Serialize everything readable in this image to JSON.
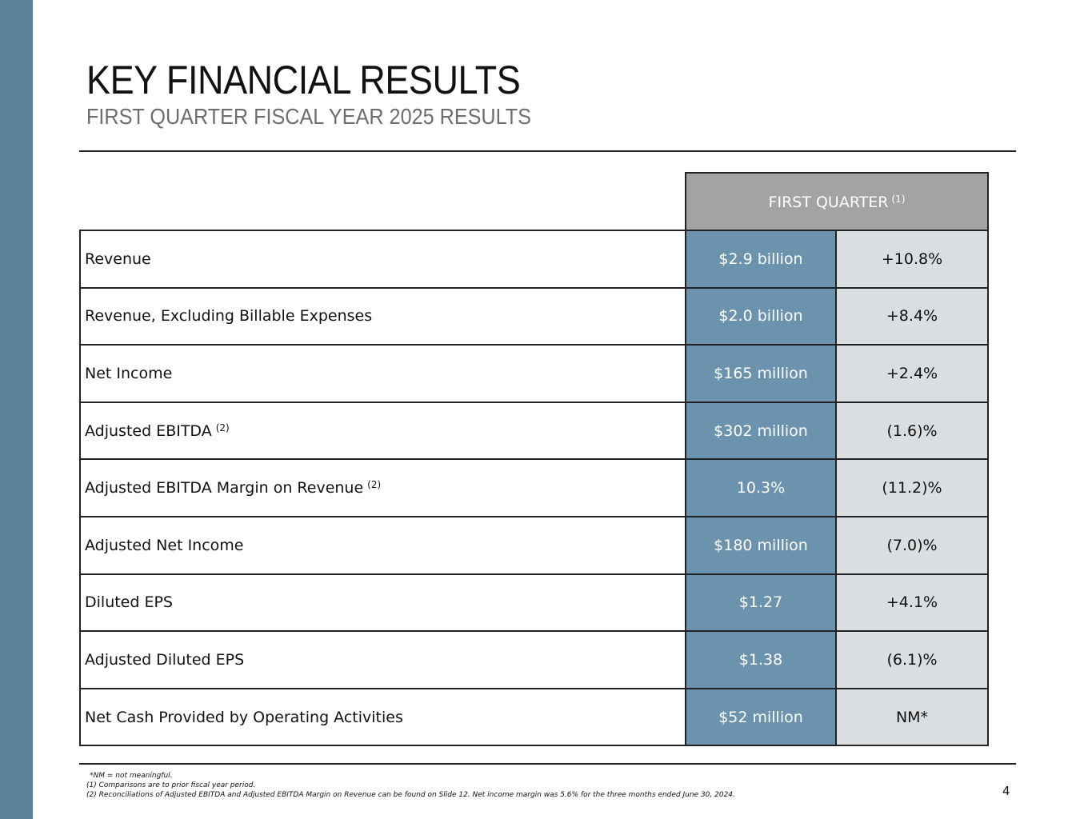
{
  "slide": {
    "title": "KEY FINANCIAL RESULTS",
    "subtitle": "FIRST QUARTER FISCAL YEAR 2025 RESULTS",
    "page_number": "4",
    "accent_color": "#5b8298"
  },
  "table": {
    "column_header": "FIRST QUARTER",
    "column_header_note": "(1)",
    "rows": [
      {
        "label": "Revenue",
        "note": "",
        "value": "$2.9 billion",
        "change": "+10.8%"
      },
      {
        "label": "Revenue, Excluding Billable Expenses",
        "note": "",
        "value": "$2.0 billion",
        "change": "+8.4%"
      },
      {
        "label": "Net Income",
        "note": "",
        "value": "$165 million",
        "change": "+2.4%"
      },
      {
        "label": "Adjusted EBITDA",
        "note": "(2)",
        "value": "$302 million",
        "change": "(1.6)%"
      },
      {
        "label": "Adjusted EBITDA Margin on Revenue",
        "note": "(2)",
        "value": "10.3%",
        "change": "(11.2)%"
      },
      {
        "label": "Adjusted Net Income",
        "note": "",
        "value": "$180 million",
        "change": "(7.0)%"
      },
      {
        "label": "Diluted EPS",
        "note": "",
        "value": "$1.27",
        "change": "+4.1%"
      },
      {
        "label": "Adjusted Diluted EPS",
        "note": "",
        "value": "$1.38",
        "change": "(6.1)%"
      },
      {
        "label": "Net Cash Provided by Operating Activities",
        "note": "",
        "value": "$52 million",
        "change": "NM*"
      }
    ]
  },
  "footnotes": [
    "*NM = not meaningful.",
    "(1) Comparisons are to prior fiscal year period.",
    "(2) Reconciliations of Adjusted EBITDA and Adjusted EBITDA Margin on Revenue can be found on Slide 12. Net income margin was 5.6% for the three months ended June 30, 2024."
  ]
}
